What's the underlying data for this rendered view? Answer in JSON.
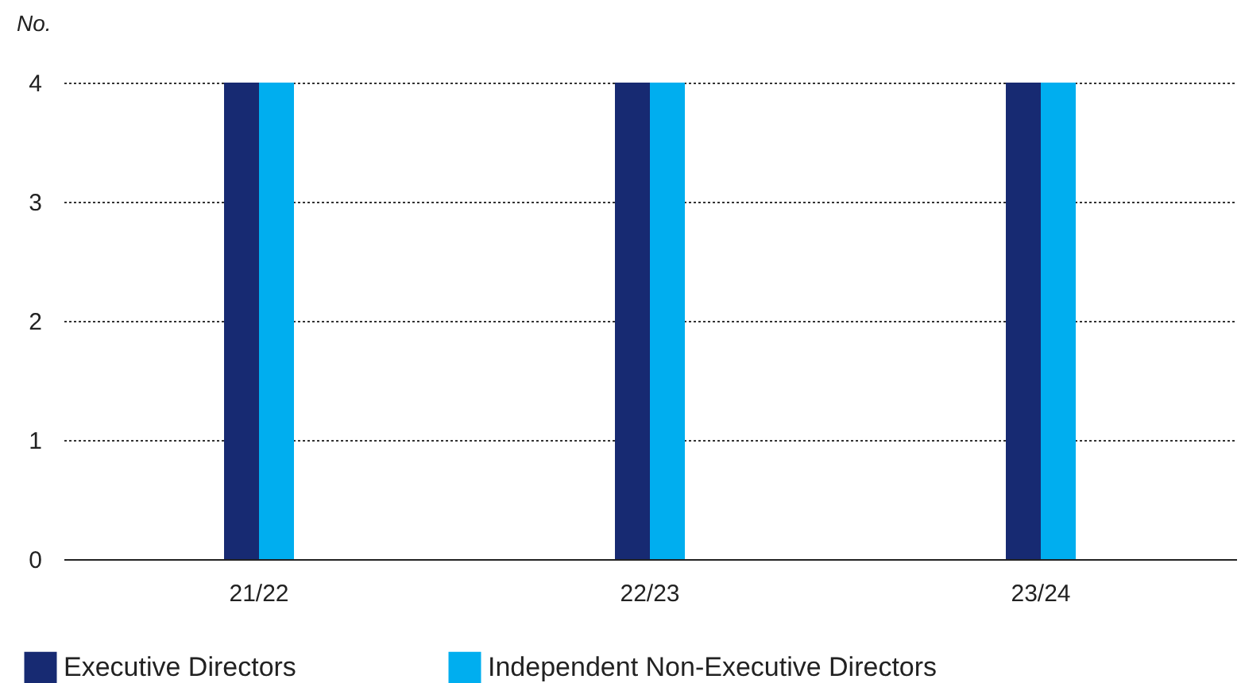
{
  "chart_data": {
    "type": "bar",
    "ylabel": "No.",
    "categories": [
      "21/22",
      "22/23",
      "23/24"
    ],
    "series": [
      {
        "name": "Executive Directors",
        "color": "#172a72",
        "values": [
          4,
          4,
          4
        ]
      },
      {
        "name": "Independent Non-Executive Directors",
        "color": "#00aeef",
        "values": [
          4,
          4,
          4
        ]
      }
    ],
    "ylim": [
      0,
      4
    ],
    "yticks": [
      0,
      1,
      2,
      3,
      4
    ],
    "grid": "y",
    "legend": "bottom"
  }
}
